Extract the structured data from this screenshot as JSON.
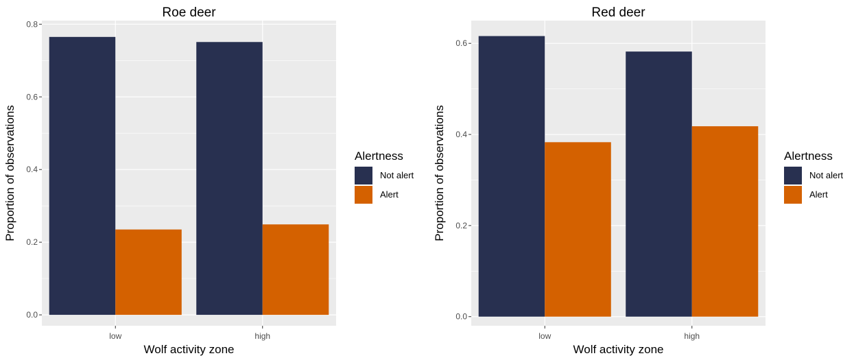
{
  "colors": {
    "panel_background": "#ebebeb",
    "grid": "#ffffff",
    "not_alert": "#283050",
    "alert": "#d46100"
  },
  "chart_data": [
    {
      "type": "bar",
      "title": "Roe deer",
      "xlabel": "Wolf activity zone",
      "ylabel": "Proportion of observations",
      "categories": [
        "low",
        "high"
      ],
      "ylim": [
        -0.03,
        0.81
      ],
      "yticks": [
        0.0,
        0.2,
        0.4,
        0.6,
        0.8
      ],
      "ytick_labels": [
        "0.0",
        "0.2",
        "0.4",
        "0.6",
        "0.8"
      ],
      "grid": true,
      "series": [
        {
          "name": "Not alert",
          "color": "#283050",
          "values": [
            0.765,
            0.751
          ]
        },
        {
          "name": "Alert",
          "color": "#d46100",
          "values": [
            0.235,
            0.249
          ]
        }
      ],
      "legend": {
        "title": "Alertness",
        "position": "right"
      }
    },
    {
      "type": "bar",
      "title": "Red deer",
      "xlabel": "Wolf activity zone",
      "ylabel": "Proportion of observations",
      "categories": [
        "low",
        "high"
      ],
      "ylim": [
        -0.02,
        0.65
      ],
      "yticks": [
        0.0,
        0.2,
        0.4,
        0.6
      ],
      "ytick_labels": [
        "0.0",
        "0.2",
        "0.4",
        "0.6"
      ],
      "grid": true,
      "series": [
        {
          "name": "Not alert",
          "color": "#283050",
          "values": [
            0.616,
            0.582
          ]
        },
        {
          "name": "Alert",
          "color": "#d46100",
          "values": [
            0.383,
            0.418
          ]
        }
      ],
      "legend": {
        "title": "Alertness",
        "position": "right"
      }
    }
  ]
}
